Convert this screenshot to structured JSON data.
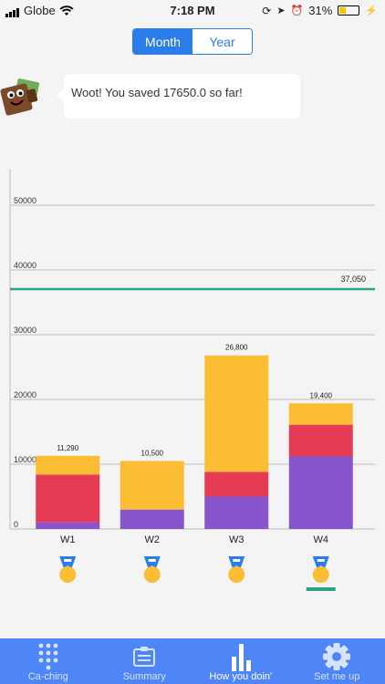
{
  "status": {
    "carrier": "Globe",
    "time": "7:18 PM",
    "battery": "31%",
    "battery_level": 0.31
  },
  "period_toggle": {
    "month": "Month",
    "year": "Year",
    "selected": "Month"
  },
  "message": "Woot! You saved 17650.0 so far!",
  "chart_data": {
    "type": "bar",
    "stacked": true,
    "categories": [
      "W1",
      "W2",
      "W3",
      "W4"
    ],
    "series": [
      {
        "color": "#8855cc",
        "values": [
          1000,
          3000,
          5000,
          11200
        ]
      },
      {
        "color": "#e63b55",
        "values": [
          7400,
          0,
          3800,
          4900
        ]
      },
      {
        "color": "#fbbd34",
        "values": [
          2890,
          7500,
          18000,
          3300
        ]
      }
    ],
    "totals": [
      "11,290",
      "10,500",
      "26,800",
      "19,400"
    ],
    "ylim": [
      0,
      50000
    ],
    "yticks": [
      "0",
      "10000",
      "20000",
      "30000",
      "40000",
      "50000"
    ],
    "yticks_values": [
      0,
      10000,
      20000,
      30000,
      40000,
      50000
    ],
    "target": {
      "value": 37050,
      "label": "37,050",
      "color": "#2aa58a"
    },
    "grid": true,
    "selected_week": "W4"
  },
  "tabs": [
    {
      "label": "Ca-ching",
      "icon": "dial-pad-icon"
    },
    {
      "label": "Summary",
      "icon": "summary-card-icon"
    },
    {
      "label": "How you doin'",
      "icon": "bar-chart-icon",
      "active": true
    },
    {
      "label": "Set me up",
      "icon": "gear-icon"
    }
  ],
  "colors": {
    "accent": "#2b7de9",
    "tabbar": "#4f86f7",
    "medal_ribbon": "#2b7de9",
    "medal": "#fbbd34"
  }
}
